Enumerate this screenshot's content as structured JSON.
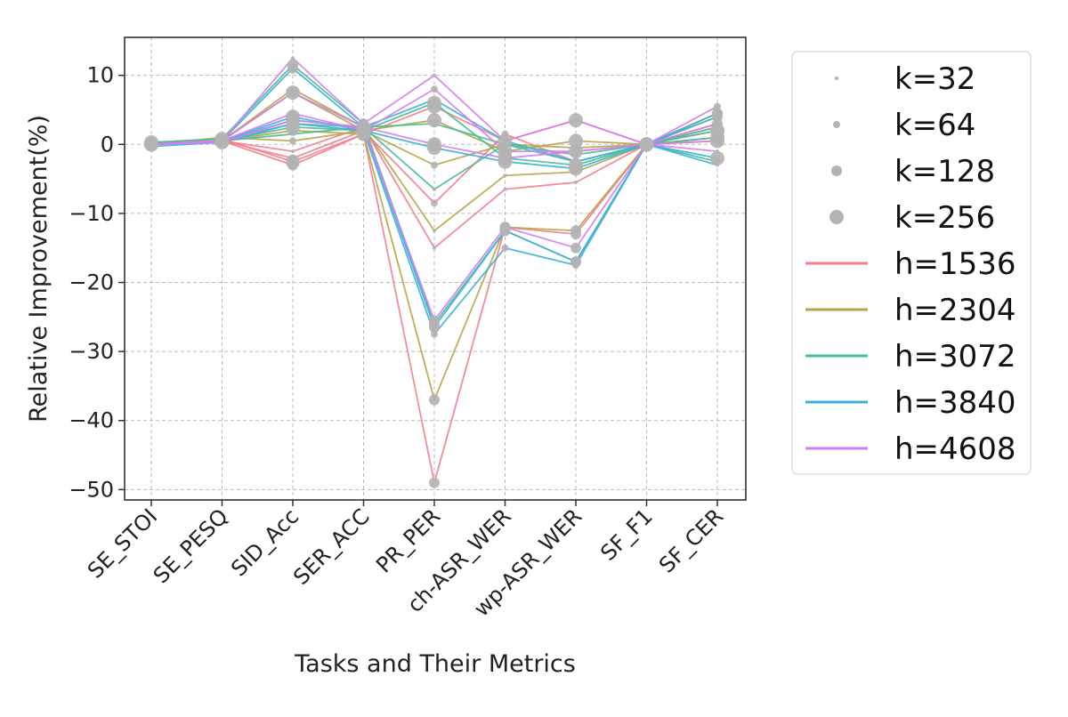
{
  "chart_data": {
    "type": "line",
    "xlabel": "Tasks and Their Metrics",
    "ylabel": "Relative Improvement(%)",
    "categories": [
      "SE_STOI",
      "SE_PESQ",
      "SID_Acc",
      "SER_ACC",
      "PR_PER",
      "ch-ASR_WER",
      "wp-ASR_WER",
      "SF_F1",
      "SF_CER"
    ],
    "ylim": [
      -51.5,
      15.5
    ],
    "yticks": [
      10,
      0,
      -10,
      -20,
      -30,
      -40,
      -50
    ],
    "ytick_labels": [
      "10",
      "0",
      "−10",
      "−20",
      "−30",
      "−40",
      "−50"
    ],
    "grid": true,
    "legend_position": "outside-right",
    "marker_color": "#b3b3b3",
    "marker_legend": [
      {
        "label": "k=32",
        "size": 2
      },
      {
        "label": "k=64",
        "size": 4
      },
      {
        "label": "k=128",
        "size": 6
      },
      {
        "label": "k=256",
        "size": 8
      }
    ],
    "line_legend": [
      {
        "label": "h=1536",
        "color": "#f47f8e"
      },
      {
        "label": "h=2304",
        "color": "#b5a64a"
      },
      {
        "label": "h=3072",
        "color": "#49bd97"
      },
      {
        "label": "h=3840",
        "color": "#3db2d6"
      },
      {
        "label": "h=4608",
        "color": "#d47ef2"
      }
    ],
    "series": [
      {
        "h": "h=1536",
        "k": "k=32",
        "values": [
          0,
          0.5,
          -1,
          2.5,
          -15,
          -6.5,
          -5.5,
          0,
          0.5
        ]
      },
      {
        "h": "h=1536",
        "k": "k=64",
        "values": [
          0,
          0.5,
          -2,
          2,
          -8.5,
          1.5,
          -2.5,
          0,
          2.5
        ]
      },
      {
        "h": "h=1536",
        "k": "k=128",
        "values": [
          0,
          0.5,
          -3,
          1.5,
          -49,
          -12,
          -13,
          0,
          4
        ]
      },
      {
        "h": "h=1536",
        "k": "k=256",
        "values": [
          0.3,
          0.8,
          -2.5,
          1.5,
          5.5,
          0.5,
          3.5,
          0,
          2
        ]
      },
      {
        "h": "h=2304",
        "k": "k=32",
        "values": [
          0,
          0.5,
          8,
          2.5,
          -12.5,
          -4.5,
          -4,
          0,
          3
        ]
      },
      {
        "h": "h=2304",
        "k": "k=64",
        "values": [
          0,
          1,
          0.5,
          2,
          -3,
          0,
          -0.5,
          0,
          4.5
        ]
      },
      {
        "h": "h=2304",
        "k": "k=128",
        "values": [
          0.3,
          0.5,
          2,
          1.5,
          -37,
          -12,
          -12.5,
          0,
          4.5
        ]
      },
      {
        "h": "h=2304",
        "k": "k=256",
        "values": [
          0,
          0.5,
          7.5,
          2,
          3.5,
          -1,
          0.5,
          0,
          1
        ]
      },
      {
        "h": "h=3072",
        "k": "k=32",
        "values": [
          0,
          0.5,
          1.5,
          2.5,
          -6.5,
          0,
          -2.5,
          0,
          2.5
        ]
      },
      {
        "h": "h=3072",
        "k": "k=64",
        "values": [
          0,
          0.5,
          3,
          2.5,
          3,
          0,
          -1.5,
          0,
          -2.5
        ]
      },
      {
        "h": "h=3072",
        "k": "k=128",
        "values": [
          0.3,
          0.8,
          11.5,
          3,
          -26,
          -12.5,
          -17,
          0,
          1
        ]
      },
      {
        "h": "h=3072",
        "k": "k=256",
        "values": [
          0,
          0.5,
          2.5,
          2,
          6,
          -2,
          -3,
          0,
          2
        ]
      },
      {
        "h": "h=3840",
        "k": "k=32",
        "values": [
          0,
          0.5,
          3.5,
          2.5,
          6.5,
          0.5,
          -2.5,
          0,
          -3
        ]
      },
      {
        "h": "h=3840",
        "k": "k=64",
        "values": [
          -0.3,
          0.3,
          3,
          2,
          -27.5,
          -15,
          -17.5,
          0,
          4
        ]
      },
      {
        "h": "h=3840",
        "k": "k=128",
        "values": [
          0,
          0.5,
          11,
          2.5,
          -26.5,
          -12.5,
          -17,
          0,
          4.5
        ]
      },
      {
        "h": "h=3840",
        "k": "k=256",
        "values": [
          0,
          0.5,
          4,
          2,
          -0.5,
          -2.5,
          -3.5,
          0,
          -2
        ]
      },
      {
        "h": "h=4608",
        "k": "k=32",
        "values": [
          0,
          0.5,
          12.5,
          3,
          10,
          0.5,
          3.5,
          0,
          -1
        ]
      },
      {
        "h": "h=4608",
        "k": "k=64",
        "values": [
          0,
          0.5,
          4.5,
          2,
          8,
          -1,
          -1,
          0,
          5.5
        ]
      },
      {
        "h": "h=4608",
        "k": "k=128",
        "values": [
          0,
          0.5,
          7.5,
          2.5,
          -25.5,
          -12,
          -15,
          0,
          3
        ]
      },
      {
        "h": "h=4608",
        "k": "k=256",
        "values": [
          0,
          0.3,
          3.5,
          2.5,
          0,
          -2,
          -1,
          0,
          0.5
        ]
      }
    ]
  }
}
